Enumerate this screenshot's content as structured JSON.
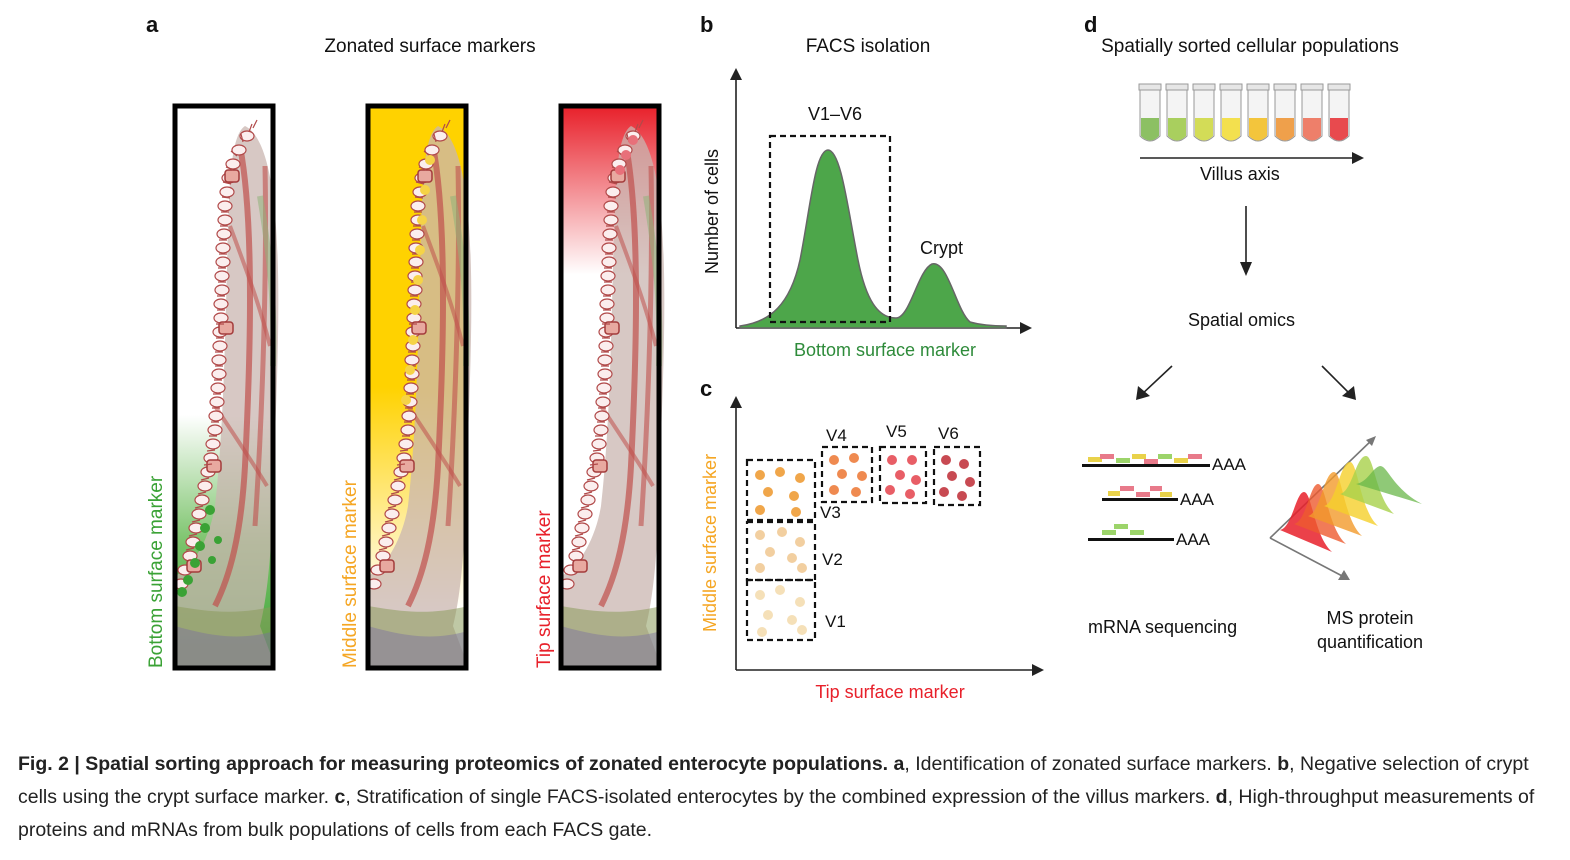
{
  "panel_a": {
    "letter": "a",
    "title": "Zonated surface markers",
    "labels": [
      "Bottom surface marker",
      "Middle surface marker",
      "Tip surface marker"
    ],
    "colors": [
      "#3aa235",
      "#f5a623",
      "#e8202a"
    ]
  },
  "panel_b": {
    "letter": "b",
    "title": "FACS isolation",
    "ylabel": "Number of cells",
    "xlabel": "Bottom surface marker",
    "gate_label": "V1–V6",
    "peak_label": "Crypt"
  },
  "panel_c": {
    "letter": "c",
    "ylabel": "Middle surface marker",
    "xlabel": "Tip surface marker",
    "gates": [
      "V1",
      "V2",
      "V3",
      "V4",
      "V5",
      "V6"
    ]
  },
  "panel_d": {
    "letter": "d",
    "title": "Spatially sorted cellular populations",
    "axis_label": "Villus axis",
    "omics_label": "Spatial omics",
    "mrna_label": "mRNA sequencing",
    "ms_label_line1": "MS protein",
    "ms_label_line2": "quantification",
    "polya": [
      "AAA",
      "AAA",
      "AAA"
    ],
    "tube_colors": [
      "#8cc063",
      "#a9cf5e",
      "#d3dc57",
      "#f3e04e",
      "#f3c53c",
      "#efa04b",
      "#ee7f6a",
      "#e84a4e"
    ]
  },
  "caption": {
    "fig_label": "Fig. 2 | ",
    "title": "Spatial sorting approach for measuring proteomics of zonated enterocyte populations.",
    "a_letter": "a",
    "a_text": ", Identification of zonated surface markers. ",
    "b_letter": "b",
    "b_text": ", Negative selection of crypt cells using the crypt surface marker. ",
    "c_letter": "c",
    "c_text": ", Stratification of single FACS-isolated enterocytes by the combined expression of the villus markers. ",
    "d_letter": "d",
    "d_text": ", High-throughput measurements of proteins and mRNAs from bulk populations of cells from each FACS gate."
  }
}
